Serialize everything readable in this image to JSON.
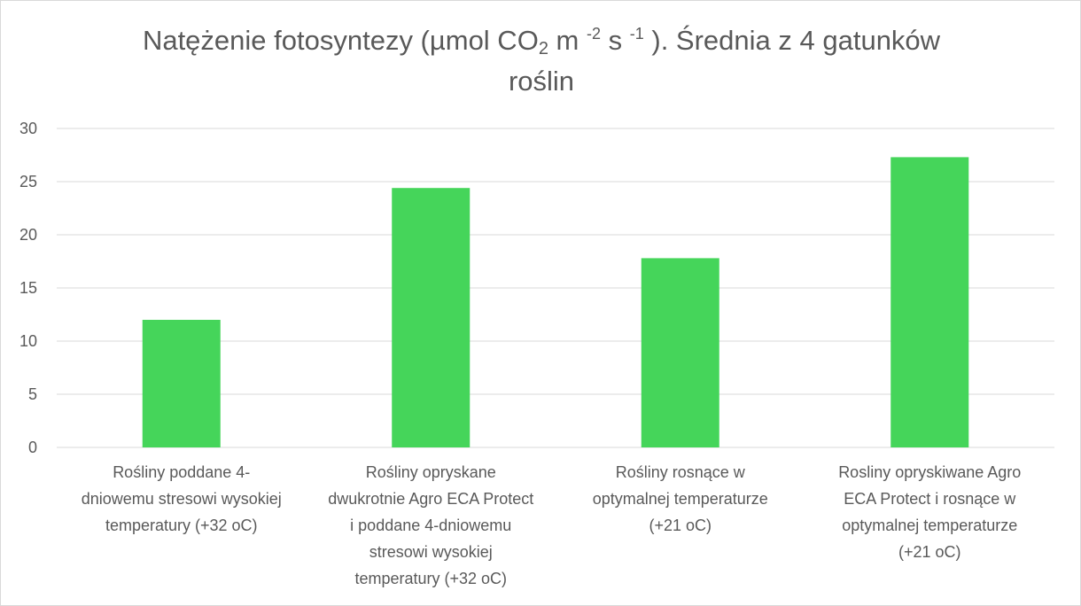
{
  "chart_data": {
    "type": "bar",
    "title": {
      "line1_part1": "Natężenie fotosyntezy (µmol CO",
      "sub_2": "2",
      "line1_part2": " m ",
      "sup_minus2": "-2",
      "line1_part3": " s ",
      "sup_minus1": "-1",
      "line1_part4": " ). Średnia  z 4 gatunków",
      "line2": "roślin"
    },
    "categories": [
      [
        "Rośliny poddane 4-",
        "dniowemu stresowi wysokiej",
        "temperatury (+32 oC)"
      ],
      [
        "Rośliny opryskane",
        "dwukrotnie Agro ECA Protect",
        "i poddane 4-dniowemu",
        "stresowi wysokiej",
        "temperatury (+32 oC)"
      ],
      [
        "Rośliny rosnące w",
        "optymalnej temperaturze",
        "(+21 oC)"
      ],
      [
        "Rosliny opryskiwane Agro",
        "ECA Protect  i rosnące w",
        "optymalnej temperaturze",
        "(+21 oC)"
      ]
    ],
    "values": [
      12.0,
      24.4,
      17.8,
      27.3
    ],
    "ylim": [
      0,
      30
    ],
    "yticks": [
      "0",
      "5",
      "10",
      "15",
      "20",
      "25",
      "30"
    ],
    "xlabel": "",
    "ylabel": "",
    "grid": true,
    "legend": "none",
    "colors": {
      "bar": "#45d55a",
      "grid": "#d9d9d9",
      "text": "#595959"
    }
  }
}
